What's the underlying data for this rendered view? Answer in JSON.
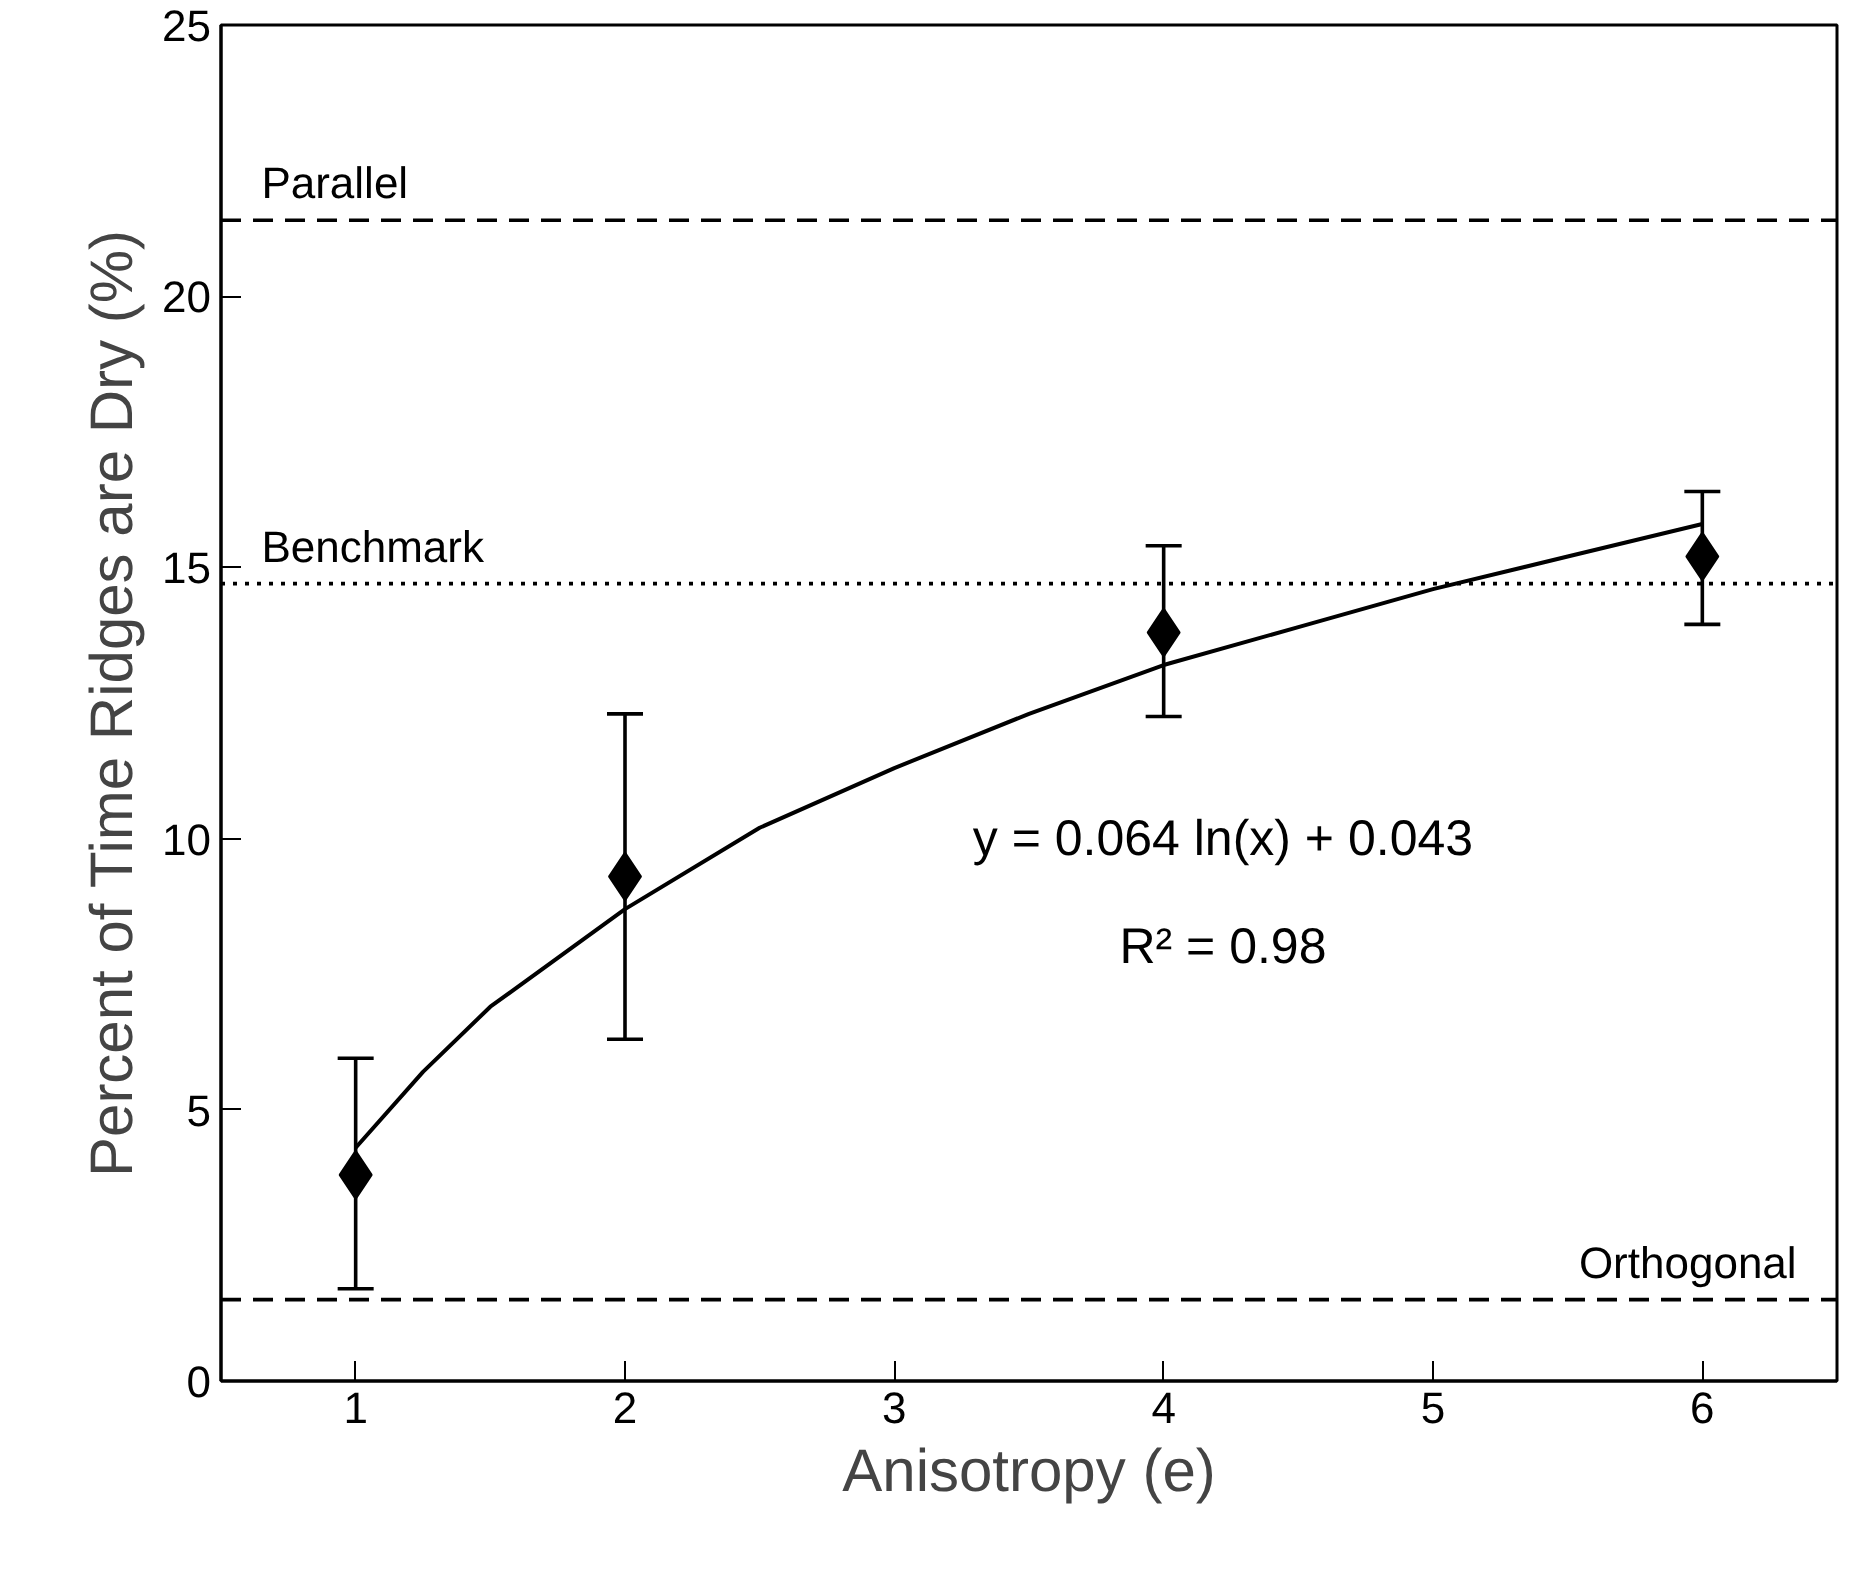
{
  "chart_data": {
    "type": "scatter",
    "xlabel": "Anisotropy (e)",
    "ylabel": "Percent of Time Ridges are Dry (%)",
    "xlim": [
      0.5,
      6.5
    ],
    "xticks": [
      1,
      2,
      3,
      4,
      5,
      6
    ],
    "ylim": [
      0,
      25
    ],
    "yticks": [
      0,
      5,
      10,
      15,
      20,
      25
    ],
    "grid": false,
    "series": [
      {
        "color": "#000000",
        "marker": "diamond",
        "x": [
          1,
          2,
          4,
          6
        ],
        "values": [
          3.8,
          9.3,
          13.8,
          15.2
        ],
        "errors": [
          [
            1.7,
            5.95
          ],
          [
            6.3,
            12.3
          ],
          [
            12.25,
            15.4
          ],
          [
            13.95,
            16.4
          ]
        ]
      },
      {
        "type": "line",
        "color": "#000000",
        "marker": "none",
        "line_style": "solid",
        "x": [
          1,
          1.25,
          1.5,
          2,
          2.5,
          3,
          3.5,
          4,
          4.5,
          5,
          5.5,
          6
        ],
        "values": [
          4.3,
          5.7,
          6.9,
          8.7,
          10.2,
          11.3,
          12.3,
          13.2,
          13.9,
          14.6,
          15.2,
          15.8
        ]
      }
    ],
    "ref_lines": [
      {
        "axis": "y",
        "value": 21.4,
        "label": "Parallel",
        "line_style": "dashed",
        "color": "#000000"
      },
      {
        "axis": "y",
        "value": 14.7,
        "label": "Benchmark",
        "line_style": "dotted",
        "color": "#000000"
      },
      {
        "axis": "y",
        "value": 1.5,
        "label": "Orthogonal",
        "line_style": "dashed",
        "color": "#000000"
      }
    ],
    "annotations": [
      "y = 0.064 ln(x) + 0.043",
      "R² = 0.98"
    ]
  }
}
